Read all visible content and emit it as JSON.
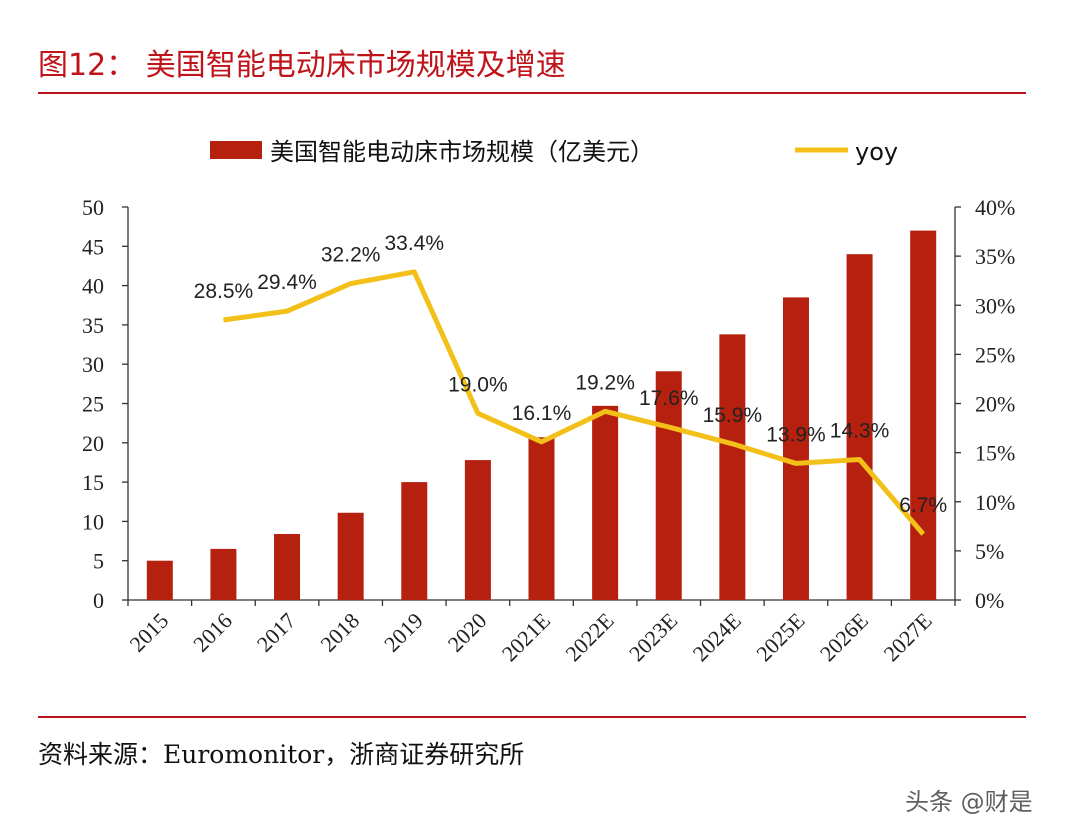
{
  "header": {
    "title": "图12：  美国智能电动床市场规模及增速"
  },
  "footer": {
    "source": "资料来源：Euromonitor，浙商证券研究所",
    "watermark": "头条 @财是"
  },
  "colors": {
    "bar": "#b5200f",
    "line": "#f2c018",
    "title": "#c0141b"
  },
  "chart_data": {
    "type": "bar",
    "categories": [
      "2015",
      "2016",
      "2017",
      "2018",
      "2019",
      "2020",
      "2021E",
      "2022E",
      "2023E",
      "2024E",
      "2025E",
      "2026E",
      "2027E"
    ],
    "series": [
      {
        "name": "美国智能电动床市场规模（亿美元）",
        "type": "bar",
        "axis": "left",
        "values": [
          5.0,
          6.5,
          8.4,
          11.1,
          15.0,
          17.8,
          20.7,
          24.7,
          29.1,
          33.8,
          38.5,
          44.0,
          47.0
        ]
      },
      {
        "name": "yoy",
        "type": "line",
        "axis": "right",
        "values": [
          null,
          28.5,
          29.4,
          32.2,
          33.4,
          19.0,
          16.1,
          19.2,
          17.6,
          15.9,
          13.9,
          14.3,
          6.7
        ],
        "labels": [
          "",
          "28.5%",
          "29.4%",
          "32.2%",
          "33.4%",
          "19.0%",
          "16.1%",
          "19.2%",
          "17.6%",
          "15.9%",
          "13.9%",
          "14.3%",
          "6.7%"
        ]
      }
    ],
    "y_left": {
      "ylim": [
        0,
        50
      ],
      "ticks": [
        "0",
        "5",
        "10",
        "15",
        "20",
        "25",
        "30",
        "35",
        "40",
        "45",
        "50"
      ]
    },
    "y_right": {
      "ylim": [
        0,
        40
      ],
      "ticks": [
        "0%",
        "5%",
        "10%",
        "15%",
        "20%",
        "25%",
        "30%",
        "35%",
        "40%"
      ]
    },
    "legend": "top-center",
    "grid": false
  }
}
